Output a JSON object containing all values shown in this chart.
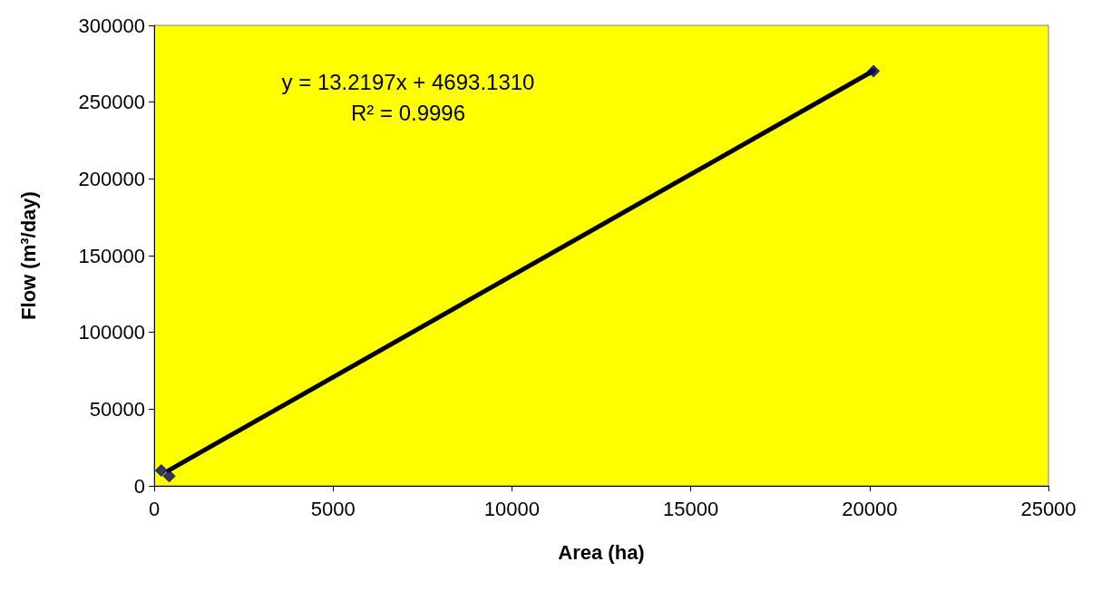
{
  "chart_data": {
    "type": "scatter",
    "xlabel": "Area (ha)",
    "ylabel": "Flow (m³/day)",
    "xlim": [
      0,
      25000
    ],
    "xticks": [
      0,
      5000,
      10000,
      15000,
      20000,
      25000
    ],
    "ylim": [
      0,
      300000
    ],
    "yticks": [
      0,
      50000,
      100000,
      150000,
      200000,
      250000,
      300000
    ],
    "grid": false,
    "marker": "diamond",
    "annotations": [
      "y = 13.2197x + 4693.1310",
      "R² = 0.9996"
    ],
    "series": [
      {
        "color": "#000080",
        "x": [
          200,
          420,
          20110
        ],
        "values": [
          10000,
          6300,
          270200
        ]
      },
      {
        "type": "line",
        "color": "#000000",
        "marker": "none",
        "line_style": "solid",
        "x": [
          400,
          20110
        ],
        "values": [
          10000,
          270500
        ]
      }
    ]
  }
}
